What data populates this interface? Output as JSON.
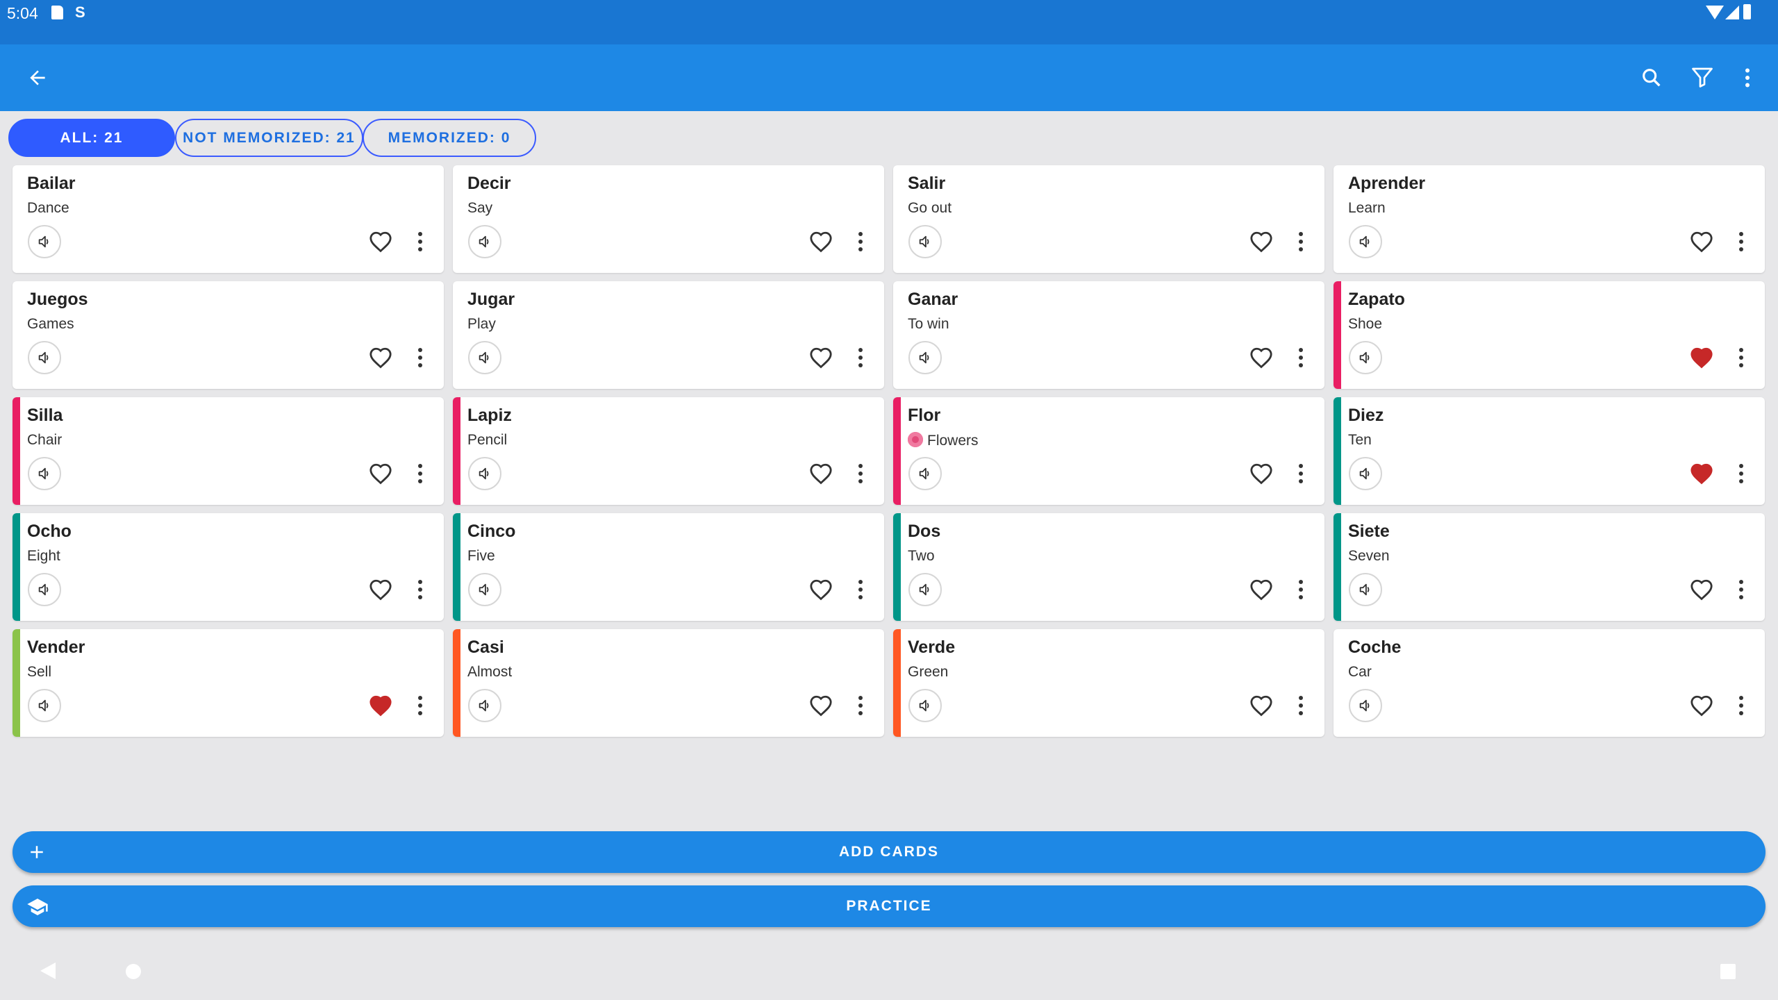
{
  "status_bar": {
    "time": "5:04",
    "sim_glyph": "S"
  },
  "chips": [
    {
      "label": "ALL: 21",
      "active": true
    },
    {
      "label": "NOT MEMORIZED: 21",
      "active": false
    },
    {
      "label": "MEMORIZED: 0",
      "active": false
    }
  ],
  "colors": {
    "primary": "#1e88e5",
    "status_bar": "#1976d2",
    "chip_active": "#2f5bff",
    "favorite": "#c62828",
    "stripe_pink": "#e91e63",
    "stripe_teal": "#009688",
    "stripe_green": "#8bc34a",
    "stripe_orange": "#ff5722"
  },
  "cards": [
    {
      "word": "Bailar",
      "meaning": "Dance",
      "stripe": null,
      "favorite": false
    },
    {
      "word": "Decir",
      "meaning": "Say",
      "stripe": null,
      "favorite": false
    },
    {
      "word": "Salir",
      "meaning": "Go out",
      "stripe": null,
      "favorite": false
    },
    {
      "word": "Aprender",
      "meaning": "Learn",
      "stripe": null,
      "favorite": false
    },
    {
      "word": "Juegos",
      "meaning": "Games",
      "stripe": null,
      "favorite": false
    },
    {
      "word": "Jugar",
      "meaning": "Play",
      "stripe": null,
      "favorite": false
    },
    {
      "word": "Ganar",
      "meaning": "To win",
      "stripe": null,
      "favorite": false
    },
    {
      "word": "Zapato",
      "meaning": "Shoe",
      "stripe": "#e91e63",
      "favorite": true
    },
    {
      "word": "Silla",
      "meaning": "Chair",
      "stripe": "#e91e63",
      "favorite": false
    },
    {
      "word": "Lapiz",
      "meaning": "Pencil",
      "stripe": "#e91e63",
      "favorite": false
    },
    {
      "word": "Flor",
      "meaning": "Flowers",
      "stripe": "#e91e63",
      "favorite": false,
      "emoji": "flower-icon"
    },
    {
      "word": "Diez",
      "meaning": "Ten",
      "stripe": "#009688",
      "favorite": true
    },
    {
      "word": "Ocho",
      "meaning": "Eight",
      "stripe": "#009688",
      "favorite": false
    },
    {
      "word": "Cinco",
      "meaning": "Five",
      "stripe": "#009688",
      "favorite": false
    },
    {
      "word": "Dos",
      "meaning": "Two",
      "stripe": "#009688",
      "favorite": false
    },
    {
      "word": "Siete",
      "meaning": "Seven",
      "stripe": "#009688",
      "favorite": false
    },
    {
      "word": "Vender",
      "meaning": "Sell",
      "stripe": "#8bc34a",
      "favorite": true
    },
    {
      "word": "Casi",
      "meaning": "Almost",
      "stripe": "#ff5722",
      "favorite": false
    },
    {
      "word": "Verde",
      "meaning": "Green",
      "stripe": "#ff5722",
      "favorite": false
    },
    {
      "word": "Coche",
      "meaning": "Car",
      "stripe": null,
      "favorite": false
    }
  ],
  "buttons": {
    "add_cards": "ADD CARDS",
    "practice": "PRACTICE"
  }
}
